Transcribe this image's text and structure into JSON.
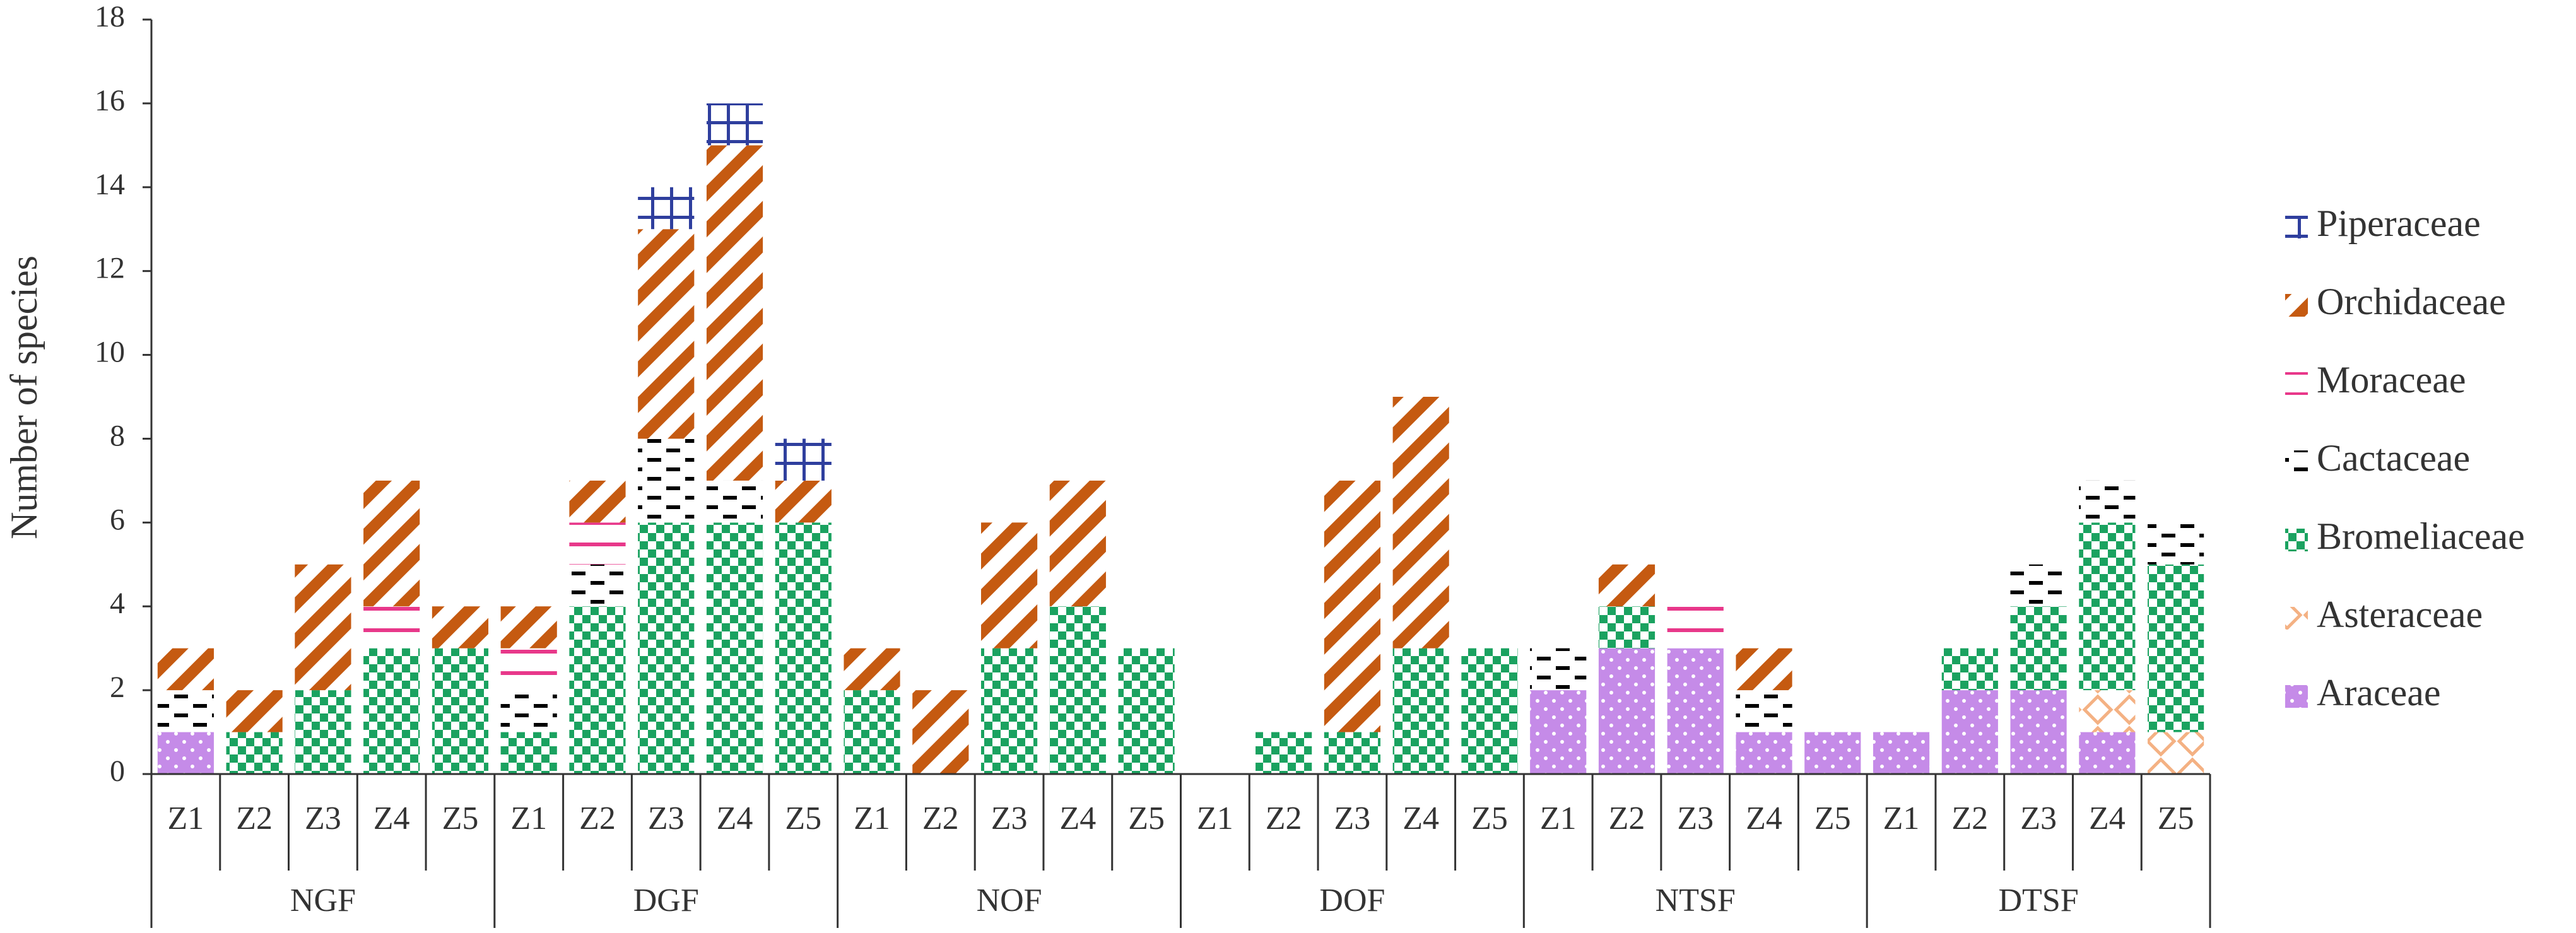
{
  "chart_data": {
    "type": "stacked_bar",
    "y_label": "Number of species",
    "categories": [
      "Z1",
      "Z2",
      "Z3",
      "Z4",
      "Z5",
      "Z1",
      "Z2",
      "Z3",
      "Z4",
      "Z5",
      "Z1",
      "Z2",
      "Z3",
      "Z4",
      "Z5",
      "Z1",
      "Z2",
      "Z3",
      "Z4",
      "Z5",
      "Z1",
      "Z2",
      "Z3",
      "Z4",
      "Z5",
      "Z1",
      "Z2",
      "Z3",
      "Z4",
      "Z5"
    ],
    "groups": [
      "NGF",
      "DGF",
      "NOF",
      "DOF",
      "NTSF",
      "DTSF"
    ],
    "ylim": [
      0,
      18
    ],
    "yticks": [
      0,
      2,
      4,
      6,
      8,
      10,
      12,
      14,
      16,
      18
    ],
    "legend": "right",
    "series": [
      {
        "name": "Araceae",
        "color": "#c58be8",
        "pattern": "dots",
        "values": [
          1,
          0,
          0,
          0,
          0,
          0,
          0,
          0,
          0,
          0,
          0,
          0,
          0,
          0,
          0,
          0,
          0,
          0,
          0,
          0,
          2,
          3,
          3,
          1,
          1,
          1,
          2,
          2,
          1,
          0
        ]
      },
      {
        "name": "Asteraceae",
        "color": "#f4b183",
        "pattern": "diamond",
        "values": [
          0,
          0,
          0,
          0,
          0,
          0,
          0,
          0,
          0,
          0,
          0,
          0,
          0,
          0,
          0,
          0,
          0,
          0,
          0,
          0,
          0,
          0,
          0,
          0,
          0,
          0,
          0,
          0,
          1,
          1
        ]
      },
      {
        "name": "Bromeliaceae",
        "color": "#1aa260",
        "pattern": "checker",
        "values": [
          0,
          1,
          2,
          3,
          3,
          1,
          4,
          6,
          6,
          6,
          2,
          0,
          3,
          4,
          3,
          0,
          1,
          1,
          3,
          3,
          0,
          1,
          0,
          0,
          0,
          0,
          1,
          2,
          4,
          4
        ]
      },
      {
        "name": "Cactaceae",
        "color": "#000000",
        "pattern": "dash",
        "values": [
          1,
          0,
          0,
          0,
          0,
          1,
          1,
          2,
          1,
          0,
          0,
          0,
          0,
          0,
          0,
          0,
          0,
          0,
          0,
          0,
          1,
          0,
          0,
          1,
          0,
          0,
          0,
          1,
          1,
          1
        ]
      },
      {
        "name": "Moraceae",
        "color": "#e8388a",
        "pattern": "hline",
        "values": [
          0,
          0,
          0,
          1,
          0,
          1,
          1,
          0,
          0,
          0,
          0,
          0,
          0,
          0,
          0,
          0,
          0,
          0,
          0,
          0,
          0,
          0,
          1,
          0,
          0,
          0,
          0,
          0,
          0,
          0
        ]
      },
      {
        "name": "Orchidaceae",
        "color": "#c55a11",
        "pattern": "diagonal",
        "values": [
          1,
          1,
          3,
          3,
          1,
          1,
          1,
          5,
          8,
          1,
          1,
          2,
          3,
          3,
          0,
          0,
          0,
          6,
          6,
          0,
          0,
          1,
          0,
          1,
          0,
          0,
          0,
          0,
          0,
          0
        ]
      },
      {
        "name": "Piperaceae",
        "color": "#2f3f9e",
        "pattern": "grid",
        "values": [
          0,
          0,
          0,
          0,
          0,
          0,
          0,
          1,
          1,
          1,
          0,
          0,
          0,
          0,
          0,
          0,
          0,
          0,
          0,
          0,
          0,
          0,
          0,
          0,
          0,
          0,
          0,
          0,
          0,
          0
        ]
      }
    ]
  }
}
